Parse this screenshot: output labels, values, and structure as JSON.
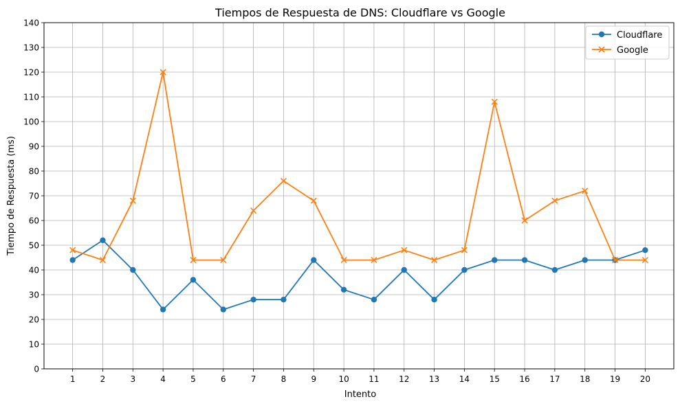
{
  "chart_data": {
    "type": "line",
    "title": "Tiempos de Respuesta de DNS: Cloudflare vs Google",
    "xlabel": "Intento",
    "ylabel": "Tiempo de Respuesta (ms)",
    "x": [
      1,
      2,
      3,
      4,
      5,
      6,
      7,
      8,
      9,
      10,
      11,
      12,
      13,
      14,
      15,
      16,
      17,
      18,
      19,
      20
    ],
    "x_ticks": [
      "1",
      "2",
      "3",
      "4",
      "5",
      "6",
      "7",
      "8",
      "9",
      "10",
      "11",
      "12",
      "13",
      "14",
      "15",
      "16",
      "17",
      "18",
      "19",
      "20"
    ],
    "xlim": [
      0.05,
      20.95
    ],
    "y_ticks": [
      "0",
      "10",
      "20",
      "30",
      "40",
      "50",
      "60",
      "70",
      "80",
      "90",
      "100",
      "110",
      "120",
      "130",
      "140"
    ],
    "ylim": [
      0,
      140
    ],
    "grid": true,
    "legend_position": "top-right",
    "series": [
      {
        "name": "Cloudflare",
        "color": "#1f77b4",
        "marker": "circle",
        "values": [
          44,
          52,
          40,
          24,
          36,
          24,
          28,
          28,
          44,
          32,
          28,
          40,
          28,
          40,
          44,
          44,
          40,
          44,
          44,
          48
        ]
      },
      {
        "name": "Google",
        "color": "#ff7f0e",
        "marker": "x",
        "values": [
          48,
          44,
          68,
          120,
          44,
          44,
          64,
          76,
          68,
          44,
          44,
          48,
          44,
          48,
          108,
          60,
          68,
          72,
          44,
          44
        ]
      }
    ]
  }
}
